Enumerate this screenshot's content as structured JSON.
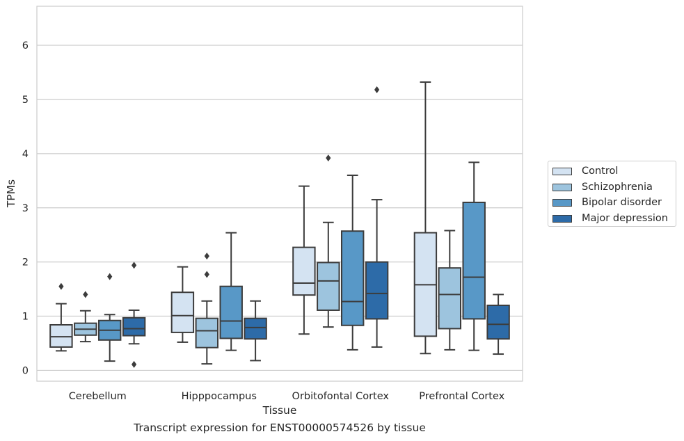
{
  "chart_data": {
    "type": "boxplot",
    "title": "",
    "caption": "Transcript expression for ENST00000574526 by tissue",
    "xlabel": "Tissue",
    "ylabel": "TPMs",
    "ylim": [
      -0.2,
      6.72
    ],
    "yticks": [
      0,
      1,
      2,
      3,
      4,
      5,
      6
    ],
    "grid": "horizontal",
    "legend_position": "right",
    "categories": [
      "Cerebellum",
      "Hipppocampus",
      "Orbitofontal Cortex",
      "Prefrontal Cortex"
    ],
    "series": [
      {
        "name": "Control",
        "color": "#d4e3f2",
        "boxes": [
          {
            "whislo": 0.36,
            "q1": 0.43,
            "med": 0.62,
            "q3": 0.84,
            "whishi": 1.23,
            "fliers": [
              1.55
            ]
          },
          {
            "whislo": 0.52,
            "q1": 0.7,
            "med": 1.01,
            "q3": 1.44,
            "whishi": 1.91,
            "fliers": []
          },
          {
            "whislo": 0.67,
            "q1": 1.39,
            "med": 1.61,
            "q3": 2.27,
            "whishi": 3.4,
            "fliers": []
          },
          {
            "whislo": 0.31,
            "q1": 0.63,
            "med": 1.58,
            "q3": 2.54,
            "whishi": 5.32,
            "fliers": []
          }
        ]
      },
      {
        "name": "Schizophrenia",
        "color": "#9dc4de",
        "boxes": [
          {
            "whislo": 0.53,
            "q1": 0.65,
            "med": 0.76,
            "q3": 0.87,
            "whishi": 1.1,
            "fliers": [
              1.4
            ]
          },
          {
            "whislo": 0.12,
            "q1": 0.42,
            "med": 0.73,
            "q3": 0.96,
            "whishi": 1.28,
            "fliers": [
              1.77,
              2.11
            ]
          },
          {
            "whislo": 0.8,
            "q1": 1.11,
            "med": 1.65,
            "q3": 1.99,
            "whishi": 2.73,
            "fliers": [
              3.92
            ]
          },
          {
            "whislo": 0.38,
            "q1": 0.77,
            "med": 1.4,
            "q3": 1.89,
            "whishi": 2.58,
            "fliers": []
          }
        ]
      },
      {
        "name": "Bipolar disorder",
        "color": "#5898c7",
        "boxes": [
          {
            "whislo": 0.17,
            "q1": 0.56,
            "med": 0.74,
            "q3": 0.92,
            "whishi": 1.03,
            "fliers": [
              1.73
            ]
          },
          {
            "whislo": 0.37,
            "q1": 0.59,
            "med": 0.91,
            "q3": 1.55,
            "whishi": 2.54,
            "fliers": []
          },
          {
            "whislo": 0.38,
            "q1": 0.83,
            "med": 1.27,
            "q3": 2.57,
            "whishi": 3.6,
            "fliers": []
          },
          {
            "whislo": 0.37,
            "q1": 0.95,
            "med": 1.72,
            "q3": 3.1,
            "whishi": 3.84,
            "fliers": []
          }
        ]
      },
      {
        "name": "Major depression",
        "color": "#2d6ba8",
        "boxes": [
          {
            "whislo": 0.49,
            "q1": 0.64,
            "med": 0.77,
            "q3": 0.97,
            "whishi": 1.11,
            "fliers": [
              0.11,
              1.94
            ]
          },
          {
            "whislo": 0.18,
            "q1": 0.58,
            "med": 0.79,
            "q3": 0.96,
            "whishi": 1.28,
            "fliers": []
          },
          {
            "whislo": 0.43,
            "q1": 0.95,
            "med": 1.42,
            "q3": 2.0,
            "whishi": 3.15,
            "fliers": [
              5.18
            ]
          },
          {
            "whislo": 0.3,
            "q1": 0.58,
            "med": 0.85,
            "q3": 1.2,
            "whishi": 1.4,
            "fliers": []
          }
        ]
      }
    ]
  }
}
